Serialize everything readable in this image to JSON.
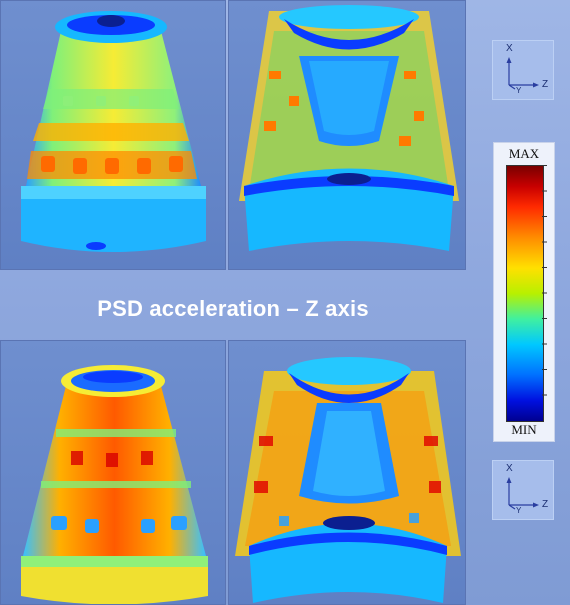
{
  "caption": {
    "title": "PSD acceleration – Z axis"
  },
  "triads": [
    {
      "x_label": "X",
      "y_label": "Y",
      "z_label": "Z"
    },
    {
      "x_label": "X",
      "y_label": "Y",
      "z_label": "Z"
    }
  ],
  "legend": {
    "max_label": "MAX",
    "min_label": "MIN"
  },
  "colors": {
    "background": "#8fa8de",
    "viewport": "#6f8fcf",
    "contour_low": "#0a3cff",
    "contour_mid": "#ffe000",
    "contour_high": "#ff2a00"
  }
}
